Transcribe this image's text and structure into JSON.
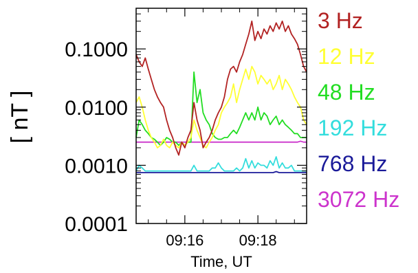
{
  "chart_data": {
    "type": "line",
    "xlabel": "Time, UT",
    "ylabel": "[ nT ]",
    "y_scale": "log",
    "ylim": [
      0.0001,
      0.5
    ],
    "xlim": [
      "09:14:40",
      "09:19:20"
    ],
    "yticks": [
      {
        "value": 0.1,
        "label": "0.1000"
      },
      {
        "value": 0.01,
        "label": "0.0100"
      },
      {
        "value": 0.001,
        "label": "0.0010"
      },
      {
        "value": 0.0001,
        "label": "0.0001"
      }
    ],
    "xticks": [
      {
        "value": "09:16:00",
        "label": "09:16"
      },
      {
        "value": "09:18:00",
        "label": "09:18"
      }
    ],
    "grid": false,
    "legend_position": "right",
    "x": [
      "09:14:40",
      "09:14:45",
      "09:14:50",
      "09:14:55",
      "09:15:00",
      "09:15:05",
      "09:15:10",
      "09:15:15",
      "09:15:20",
      "09:15:25",
      "09:15:30",
      "09:15:35",
      "09:15:40",
      "09:15:45",
      "09:15:50",
      "09:15:55",
      "09:16:00",
      "09:16:05",
      "09:16:10",
      "09:16:15",
      "09:16:20",
      "09:16:25",
      "09:16:30",
      "09:16:35",
      "09:16:40",
      "09:16:45",
      "09:16:50",
      "09:16:55",
      "09:17:00",
      "09:17:05",
      "09:17:10",
      "09:17:15",
      "09:17:20",
      "09:17:25",
      "09:17:30",
      "09:17:35",
      "09:17:40",
      "09:17:45",
      "09:17:50",
      "09:17:55",
      "09:18:00",
      "09:18:05",
      "09:18:10",
      "09:18:15",
      "09:18:20",
      "09:18:25",
      "09:18:30",
      "09:18:35",
      "09:18:40",
      "09:18:45",
      "09:18:50",
      "09:18:55",
      "09:19:00",
      "09:19:05",
      "09:19:10",
      "09:19:15",
      "09:19:20"
    ],
    "series": [
      {
        "name": "3 Hz",
        "color": "#b22222",
        "values": [
          0.08,
          0.06,
          0.05,
          0.07,
          0.045,
          0.03,
          0.02,
          0.015,
          0.012,
          0.01,
          0.006,
          0.004,
          0.003,
          0.002,
          0.0015,
          0.0025,
          0.002,
          0.003,
          0.004,
          0.012,
          0.006,
          0.004,
          0.002,
          0.0025,
          0.003,
          0.004,
          0.006,
          0.008,
          0.01,
          0.015,
          0.03,
          0.045,
          0.05,
          0.04,
          0.06,
          0.08,
          0.12,
          0.18,
          0.3,
          0.14,
          0.2,
          0.15,
          0.22,
          0.18,
          0.25,
          0.2,
          0.28,
          0.22,
          0.3,
          0.2,
          0.25,
          0.18,
          0.15,
          0.12,
          0.08,
          0.05,
          0.04
        ]
      },
      {
        "name": "12 Hz",
        "color": "#ffff33",
        "values": [
          0.012,
          0.015,
          0.01,
          0.006,
          0.004,
          0.003,
          0.0025,
          0.002,
          0.0022,
          0.0028,
          0.0022,
          0.002,
          0.0025,
          0.0022,
          0.002,
          0.0025,
          0.0022,
          0.0025,
          0.003,
          0.006,
          0.004,
          0.003,
          0.0022,
          0.002,
          0.0025,
          0.003,
          0.004,
          0.005,
          0.008,
          0.01,
          0.012,
          0.015,
          0.025,
          0.012,
          0.02,
          0.03,
          0.045,
          0.03,
          0.05,
          0.04,
          0.025,
          0.035,
          0.03,
          0.025,
          0.03,
          0.02,
          0.025,
          0.035,
          0.02,
          0.03,
          0.025,
          0.02,
          0.015,
          0.012,
          0.01,
          0.006,
          0.005
        ]
      },
      {
        "name": "48 Hz",
        "color": "#22dd22",
        "values": [
          0.003,
          0.006,
          0.005,
          0.004,
          0.0035,
          0.003,
          0.0028,
          0.0025,
          0.0022,
          0.0025,
          0.003,
          0.0028,
          0.0025,
          0.0025,
          0.0022,
          0.0025,
          0.0022,
          0.0025,
          0.0025,
          0.04,
          0.012,
          0.02,
          0.008,
          0.006,
          0.005,
          0.0035,
          0.003,
          0.0028,
          0.0028,
          0.003,
          0.003,
          0.0035,
          0.004,
          0.0035,
          0.0045,
          0.006,
          0.008,
          0.006,
          0.008,
          0.006,
          0.01,
          0.006,
          0.008,
          0.007,
          0.005,
          0.006,
          0.007,
          0.005,
          0.006,
          0.005,
          0.0045,
          0.004,
          0.0035,
          0.0035,
          0.003,
          0.003,
          0.003
        ]
      },
      {
        "name": "192 Hz",
        "color": "#33dddd",
        "values": [
          0.0008,
          0.001,
          0.0009,
          0.0008,
          0.0008,
          0.0008,
          0.0008,
          0.0008,
          0.0008,
          0.0008,
          0.0008,
          0.0008,
          0.0008,
          0.0008,
          0.0008,
          0.0008,
          0.0008,
          0.0008,
          0.0008,
          0.001,
          0.0008,
          0.0008,
          0.0008,
          0.0008,
          0.0008,
          0.0009,
          0.0009,
          0.0011,
          0.0009,
          0.0008,
          0.0008,
          0.0008,
          0.0008,
          0.0009,
          0.0008,
          0.0009,
          0.0013,
          0.0009,
          0.0012,
          0.0009,
          0.0011,
          0.001,
          0.001,
          0.0009,
          0.0012,
          0.001,
          0.0014,
          0.0009,
          0.0011,
          0.0009,
          0.0009,
          0.001,
          0.0008,
          0.0008,
          0.0008,
          0.0008,
          0.0008
        ]
      },
      {
        "name": "768 Hz",
        "color": "#1a1a99",
        "values": [
          0.00075,
          0.00075,
          0.00075,
          0.00075,
          0.00075,
          0.00075,
          0.00075,
          0.00075,
          0.00075,
          0.00075,
          0.00075,
          0.00075,
          0.00075,
          0.00075,
          0.00075,
          0.00075,
          0.00075,
          0.00075,
          0.00075,
          0.00075,
          0.00075,
          0.00075,
          0.00075,
          0.00075,
          0.00075,
          0.00075,
          0.00075,
          0.00075,
          0.00075,
          0.00075,
          0.00075,
          0.00075,
          0.00075,
          0.00075,
          0.00075,
          0.00075,
          0.00075,
          0.00075,
          0.00075,
          0.00075,
          0.00075,
          0.00075,
          0.00075,
          0.00075,
          0.00075,
          0.00075,
          0.00078,
          0.00075,
          0.00075,
          0.00075,
          0.00075,
          0.00075,
          0.00075,
          0.00075,
          0.00075,
          0.00075,
          0.00075
        ]
      },
      {
        "name": "3072 Hz",
        "color": "#cc33cc",
        "values": [
          0.0025,
          0.0025,
          0.0025,
          0.0025,
          0.0025,
          0.0025,
          0.0025,
          0.0025,
          0.0025,
          0.0025,
          0.0025,
          0.0025,
          0.0025,
          0.0025,
          0.0025,
          0.0025,
          0.0025,
          0.0025,
          0.0025,
          0.0025,
          0.0025,
          0.0025,
          0.0025,
          0.0025,
          0.0025,
          0.0025,
          0.0025,
          0.0025,
          0.0025,
          0.0025,
          0.0025,
          0.0025,
          0.0025,
          0.0025,
          0.0025,
          0.0025,
          0.0025,
          0.0025,
          0.0025,
          0.0025,
          0.0025,
          0.0025,
          0.0025,
          0.0025,
          0.0025,
          0.0025,
          0.0025,
          0.0025,
          0.0025,
          0.0025,
          0.0025,
          0.0025,
          0.0025,
          0.0025,
          0.0026,
          0.0025,
          0.0025
        ]
      }
    ]
  }
}
